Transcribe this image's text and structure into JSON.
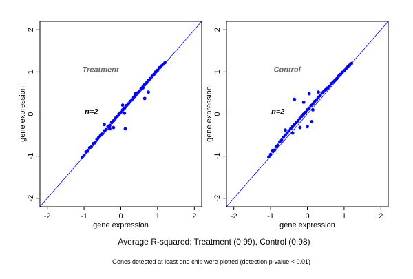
{
  "chart_data": [
    {
      "type": "scatter",
      "title": "",
      "xlabel": "gene expression",
      "ylabel": "gene expression",
      "xlim": [
        -2.2,
        2.2
      ],
      "ylim": [
        -2.2,
        2.2
      ],
      "xticks": [
        "-2",
        "-1",
        "0",
        "1",
        "2"
      ],
      "yticks": [
        "-2",
        "-1",
        "0",
        "1",
        "2"
      ],
      "grid": false,
      "reference_line": "y=x",
      "point_color": "#0000ff",
      "annotation_label": "Treatment",
      "annotation_n": "n=2",
      "series": [
        {
          "values": [
            [
              -1.05,
              -1.03
            ],
            [
              -1.0,
              -0.98
            ],
            [
              -0.95,
              -0.9
            ],
            [
              -0.9,
              -0.88
            ],
            [
              -0.85,
              -0.8
            ],
            [
              -0.8,
              -0.78
            ],
            [
              -0.75,
              -0.7
            ],
            [
              -0.7,
              -0.68
            ],
            [
              -0.65,
              -0.6
            ],
            [
              -0.6,
              -0.55
            ],
            [
              -0.55,
              -0.5
            ],
            [
              -0.5,
              -0.47
            ],
            [
              -0.45,
              -0.4
            ],
            [
              -0.4,
              -0.37
            ],
            [
              -0.35,
              -0.3
            ],
            [
              -0.3,
              -0.27
            ],
            [
              -0.25,
              -0.2
            ],
            [
              -0.2,
              -0.16
            ],
            [
              -0.15,
              -0.1
            ],
            [
              -0.1,
              -0.06
            ],
            [
              -0.05,
              0.0
            ],
            [
              0.0,
              0.04
            ],
            [
              0.05,
              0.1
            ],
            [
              0.1,
              0.14
            ],
            [
              0.15,
              0.2
            ],
            [
              0.2,
              0.24
            ],
            [
              0.25,
              0.3
            ],
            [
              0.3,
              0.34
            ],
            [
              0.35,
              0.4
            ],
            [
              0.4,
              0.44
            ],
            [
              0.45,
              0.5
            ],
            [
              0.5,
              0.54
            ],
            [
              0.55,
              0.6
            ],
            [
              0.6,
              0.64
            ],
            [
              0.65,
              0.7
            ],
            [
              0.7,
              0.74
            ],
            [
              0.75,
              0.8
            ],
            [
              0.8,
              0.84
            ],
            [
              0.85,
              0.9
            ],
            [
              0.9,
              0.94
            ],
            [
              0.95,
              1.0
            ],
            [
              1.0,
              1.04
            ],
            [
              1.05,
              1.1
            ],
            [
              1.1,
              1.14
            ],
            [
              1.15,
              1.18
            ],
            [
              1.2,
              1.22
            ],
            [
              -0.3,
              -0.35
            ],
            [
              -0.2,
              -0.32
            ],
            [
              0.12,
              -0.35
            ],
            [
              0.6,
              0.62
            ],
            [
              0.75,
              0.52
            ],
            [
              0.65,
              0.37
            ],
            [
              0.4,
              0.48
            ],
            [
              0.1,
              0.02
            ],
            [
              0.05,
              0.21
            ],
            [
              -0.45,
              -0.25
            ]
          ]
        }
      ]
    },
    {
      "type": "scatter",
      "title": "",
      "xlabel": "gene expression",
      "ylabel": "gene expression",
      "xlim": [
        -2.2,
        2.2
      ],
      "ylim": [
        -2.2,
        2.2
      ],
      "xticks": [
        "-2",
        "-1",
        "0",
        "1",
        "2"
      ],
      "yticks": [
        "-2",
        "-1",
        "0",
        "1",
        "2"
      ],
      "grid": false,
      "reference_line": "y=x",
      "point_color": "#0000ff",
      "annotation_label": "Control",
      "annotation_n": "n=2",
      "series": [
        {
          "values": [
            [
              -1.05,
              -1.02
            ],
            [
              -1.0,
              -0.96
            ],
            [
              -0.95,
              -0.88
            ],
            [
              -0.9,
              -0.86
            ],
            [
              -0.85,
              -0.78
            ],
            [
              -0.8,
              -0.74
            ],
            [
              -0.75,
              -0.66
            ],
            [
              -0.7,
              -0.62
            ],
            [
              -0.65,
              -0.55
            ],
            [
              -0.6,
              -0.5
            ],
            [
              -0.55,
              -0.45
            ],
            [
              -0.5,
              -0.4
            ],
            [
              -0.45,
              -0.35
            ],
            [
              -0.4,
              -0.3
            ],
            [
              -0.35,
              -0.25
            ],
            [
              -0.3,
              -0.2
            ],
            [
              -0.25,
              -0.16
            ],
            [
              -0.2,
              -0.1
            ],
            [
              -0.15,
              -0.05
            ],
            [
              -0.1,
              0.0
            ],
            [
              -0.05,
              0.04
            ],
            [
              0.0,
              0.1
            ],
            [
              0.05,
              0.14
            ],
            [
              0.1,
              0.2
            ],
            [
              0.15,
              0.24
            ],
            [
              0.2,
              0.3
            ],
            [
              0.25,
              0.34
            ],
            [
              0.3,
              0.4
            ],
            [
              0.35,
              0.44
            ],
            [
              0.4,
              0.5
            ],
            [
              0.45,
              0.54
            ],
            [
              0.5,
              0.58
            ],
            [
              0.55,
              0.62
            ],
            [
              0.6,
              0.66
            ],
            [
              0.65,
              0.72
            ],
            [
              0.7,
              0.76
            ],
            [
              0.75,
              0.8
            ],
            [
              0.8,
              0.84
            ],
            [
              0.85,
              0.9
            ],
            [
              0.9,
              0.94
            ],
            [
              0.95,
              0.99
            ],
            [
              1.0,
              1.03
            ],
            [
              1.05,
              1.08
            ],
            [
              1.1,
              1.12
            ],
            [
              1.15,
              1.16
            ],
            [
              1.2,
              1.2
            ],
            [
              -0.4,
              -0.45
            ],
            [
              -0.2,
              -0.32
            ],
            [
              0.12,
              -0.18
            ],
            [
              0.0,
              -0.3
            ],
            [
              -0.35,
              0.35
            ],
            [
              -0.1,
              0.28
            ],
            [
              0.3,
              0.52
            ],
            [
              0.05,
              0.48
            ],
            [
              -0.6,
              -0.38
            ],
            [
              0.15,
              0.1
            ]
          ]
        }
      ]
    }
  ],
  "caption": "Average R-squared: Treatment (0.99), Control (0.98)",
  "footnote": "Genes detected at least one chip were plotted (detection p-value < 0.01)"
}
